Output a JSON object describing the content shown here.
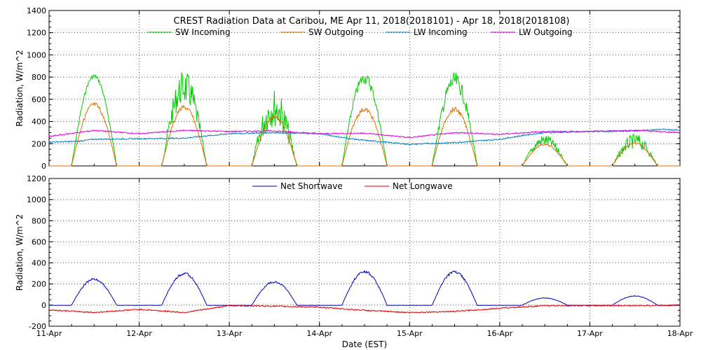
{
  "title": "CREST Radiation Data at Caribou, ME   Apr 11, 2018(2018101) - Apr 18, 2018(2018108)",
  "chart_data": [
    {
      "type": "line",
      "ylabel": "Radiation, W/m^2",
      "ylim": [
        0,
        1400
      ],
      "yticks": [
        0,
        200,
        400,
        600,
        800,
        1000,
        1200,
        1400
      ],
      "xlim": [
        0,
        7
      ],
      "legend_position": "top",
      "grid": true,
      "series": [
        {
          "name": "SW Incoming",
          "color": "#00cc00",
          "unit": "W/m^2",
          "daily_peak": [
            830,
            860,
            700,
            840,
            840,
            280,
            290
          ],
          "daily_noise": [
            0.05,
            0.35,
            0.5,
            0.12,
            0.18,
            0.35,
            0.45
          ]
        },
        {
          "name": "SW Outgoing",
          "color": "#e07000",
          "unit": "W/m^2",
          "daily_peak": [
            575,
            550,
            460,
            530,
            530,
            200,
            210
          ]
        },
        {
          "name": "LW Incoming",
          "color": "#0080c0",
          "unit": "W/m^2",
          "x": [
            0,
            0.3,
            0.5,
            1.0,
            1.5,
            2.0,
            2.5,
            3.0,
            3.3,
            3.5,
            4.0,
            4.5,
            5.0,
            5.3,
            5.5,
            5.8,
            6.0,
            6.5,
            6.8,
            7.0
          ],
          "y": [
            215,
            220,
            240,
            245,
            250,
            290,
            300,
            290,
            250,
            230,
            195,
            210,
            240,
            280,
            300,
            305,
            310,
            315,
            330,
            320
          ]
        },
        {
          "name": "LW Outgoing",
          "color": "#e000e0",
          "unit": "W/m^2",
          "x": [
            0,
            0.5,
            1.0,
            1.5,
            2.0,
            2.5,
            3.0,
            3.5,
            4.0,
            4.5,
            5.0,
            5.5,
            6.0,
            6.5,
            7.0
          ],
          "y": [
            265,
            320,
            290,
            320,
            310,
            315,
            290,
            295,
            255,
            300,
            285,
            310,
            310,
            320,
            300
          ]
        }
      ]
    },
    {
      "type": "line",
      "xlabel": "Date (EST)",
      "ylabel": "Radiation, W/m^2",
      "ylim": [
        -200,
        1200
      ],
      "yticks": [
        -200,
        0,
        200,
        400,
        600,
        800,
        1000,
        1200
      ],
      "xlim": [
        0,
        7
      ],
      "xticks": [
        "11-Apr",
        "12-Apr",
        "13-Apr",
        "14-Apr",
        "15-Apr",
        "16-Apr",
        "17-Apr",
        "18-Apr"
      ],
      "legend_position": "top",
      "grid": true,
      "series": [
        {
          "name": "Net Shortwave",
          "color": "#0000c0",
          "unit": "W/m^2",
          "daily_peak": [
            255,
            310,
            230,
            330,
            325,
            70,
            90
          ]
        },
        {
          "name": "Net Longwave",
          "color": "#e00000",
          "unit": "W/m^2",
          "x": [
            0,
            0.5,
            1.0,
            1.5,
            2.0,
            2.5,
            3.0,
            3.5,
            4.0,
            4.5,
            5.0,
            5.5,
            6.0,
            6.5,
            7.0
          ],
          "y": [
            -45,
            -70,
            -40,
            -70,
            -5,
            -10,
            -20,
            -50,
            -70,
            -60,
            -30,
            -5,
            -5,
            -5,
            0
          ]
        }
      ]
    }
  ]
}
